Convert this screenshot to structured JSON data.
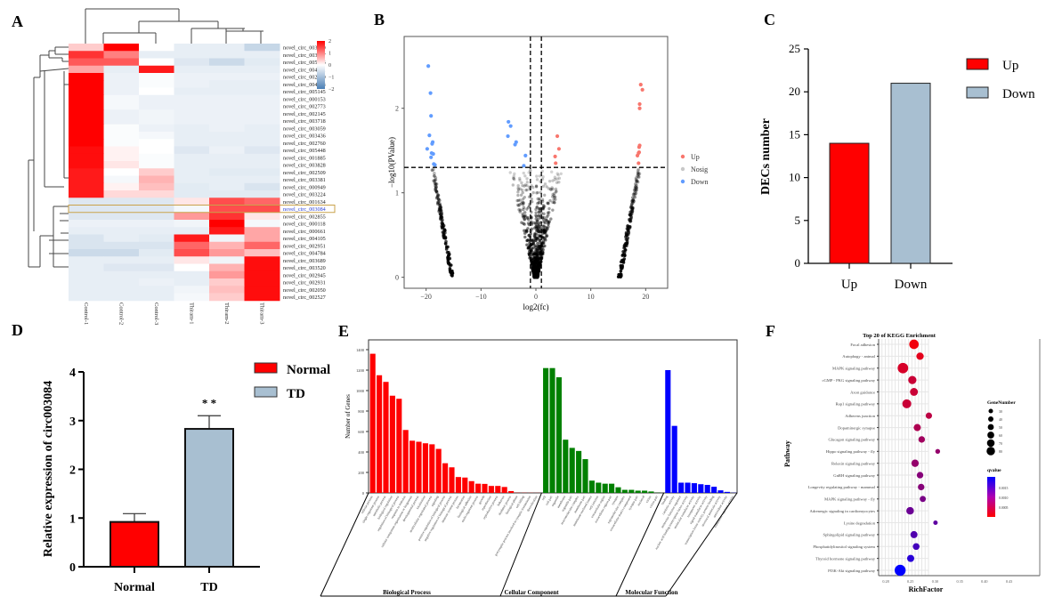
{
  "panels": {
    "A": "A",
    "B": "B",
    "C": "C",
    "D": "D",
    "E": "E",
    "F": "F"
  },
  "chart_data": [
    {
      "id": "A",
      "type": "heatmap",
      "title": "",
      "columns": [
        "Control-1",
        "Control-2",
        "Control-3",
        "Thiram-1",
        "Thiram-2",
        "Thiram-3"
      ],
      "highlighted_row": "novel_circ_003084",
      "colorbar": {
        "min": -2,
        "max": 2,
        "ticks": [
          2,
          1,
          0,
          -1,
          -2
        ],
        "low_color": "#4a7fb5",
        "mid_color": "#ffffff",
        "high_color": "#ff0000"
      },
      "rows": [
        {
          "name": "novel_circ_003620",
          "values": [
            0.4,
            2.0,
            0.0,
            -0.5,
            -0.5,
            -1.0
          ]
        },
        {
          "name": "novel_circ_003667",
          "values": [
            1.6,
            1.0,
            -0.5,
            -0.5,
            -0.5,
            -0.5
          ]
        },
        {
          "name": "novel_circ_005246",
          "values": [
            1.3,
            1.3,
            0.0,
            -0.7,
            -0.9,
            -0.6
          ]
        },
        {
          "name": "novel_circ_004511",
          "values": [
            0.7,
            -0.5,
            1.8,
            -0.5,
            -0.5,
            -0.5
          ]
        },
        {
          "name": "novel_circ_002180",
          "values": [
            2.0,
            -0.4,
            -0.1,
            -0.4,
            -0.4,
            -0.4
          ]
        },
        {
          "name": "novel_circ_004313",
          "values": [
            2.0,
            -0.4,
            -0.1,
            -0.4,
            -0.5,
            -0.5
          ]
        },
        {
          "name": "novel_circ_005145",
          "values": [
            2.0,
            -0.4,
            0.0,
            -0.5,
            -0.5,
            -0.5
          ]
        },
        {
          "name": "novel_circ_000153",
          "values": [
            2.0,
            -0.2,
            -0.4,
            -0.4,
            -0.4,
            -0.4
          ]
        },
        {
          "name": "novel_circ_002773",
          "values": [
            2.0,
            -0.2,
            -0.4,
            -0.4,
            -0.4,
            -0.4
          ]
        },
        {
          "name": "novel_circ_002145",
          "values": [
            2.0,
            -0.4,
            -0.3,
            -0.4,
            -0.4,
            -0.4
          ]
        },
        {
          "name": "novel_circ_003718",
          "values": [
            2.0,
            -0.4,
            -0.3,
            -0.4,
            -0.4,
            -0.4
          ]
        },
        {
          "name": "novel_circ_003059",
          "values": [
            2.0,
            -0.1,
            -0.4,
            -0.5,
            -0.4,
            -0.5
          ]
        },
        {
          "name": "novel_circ_003436",
          "values": [
            2.0,
            -0.1,
            -0.2,
            -0.5,
            -0.5,
            -0.5
          ]
        },
        {
          "name": "novel_circ_002760",
          "values": [
            2.0,
            -0.1,
            0.0,
            -0.5,
            -0.5,
            -0.5
          ]
        },
        {
          "name": "novel_circ_005448",
          "values": [
            1.9,
            0.1,
            0.0,
            -0.7,
            -0.4,
            -0.7
          ]
        },
        {
          "name": "novel_circ_001885",
          "values": [
            1.9,
            0.1,
            -0.1,
            -0.5,
            -0.5,
            -0.5
          ]
        },
        {
          "name": "novel_circ_003828",
          "values": [
            1.9,
            0.2,
            -0.1,
            -0.5,
            -0.5,
            -0.5
          ]
        },
        {
          "name": "novel_circ_002509",
          "values": [
            1.8,
            0.0,
            0.4,
            -0.5,
            -0.6,
            -0.6
          ]
        },
        {
          "name": "novel_circ_003381",
          "values": [
            1.8,
            -0.2,
            0.6,
            -0.5,
            -0.5,
            -0.5
          ]
        },
        {
          "name": "novel_circ_000949",
          "values": [
            1.8,
            0.1,
            0.5,
            -0.6,
            -0.5,
            -0.8
          ]
        },
        {
          "name": "novel_circ_003224",
          "values": [
            1.8,
            0.3,
            0.3,
            -0.6,
            -0.6,
            -0.6
          ]
        },
        {
          "name": "novel_circ_001634",
          "values": [
            -0.7,
            -0.7,
            -0.7,
            0.2,
            1.4,
            1.2
          ]
        },
        {
          "name": "novel_circ_003084",
          "values": [
            -0.7,
            -0.7,
            -0.7,
            -0.2,
            1.4,
            1.4
          ]
        },
        {
          "name": "novel_circ_002855",
          "values": [
            -0.7,
            -0.7,
            -0.7,
            0.8,
            1.6,
            0.2
          ]
        },
        {
          "name": "novel_circ_000118",
          "values": [
            -0.4,
            -0.4,
            -0.4,
            -0.3,
            2.0,
            -0.2
          ]
        },
        {
          "name": "novel_circ_000661",
          "values": [
            -0.5,
            -0.5,
            -0.5,
            -0.5,
            1.8,
            0.7
          ]
        },
        {
          "name": "novel_circ_004105",
          "values": [
            -0.8,
            -0.5,
            -0.6,
            1.8,
            -0.3,
            0.7
          ]
        },
        {
          "name": "novel_circ_002951",
          "values": [
            -0.8,
            -0.8,
            -0.8,
            1.2,
            0.6,
            1.2
          ]
        },
        {
          "name": "novel_circ_004784",
          "values": [
            -0.9,
            -0.9,
            -0.6,
            1.4,
            0.8,
            0.5
          ]
        },
        {
          "name": "novel_circ_003689",
          "values": [
            -0.5,
            -0.5,
            -0.5,
            0.2,
            -0.3,
            1.9
          ]
        },
        {
          "name": "novel_circ_003520",
          "values": [
            -0.5,
            -0.7,
            -0.7,
            0.0,
            0.6,
            1.9
          ]
        },
        {
          "name": "novel_circ_002945",
          "values": [
            -0.5,
            -0.5,
            -0.5,
            -0.5,
            0.8,
            1.9
          ]
        },
        {
          "name": "novel_circ_002931",
          "values": [
            -0.5,
            -0.5,
            -0.4,
            -0.5,
            0.4,
            1.9
          ]
        },
        {
          "name": "novel_circ_002050",
          "values": [
            -0.5,
            -0.5,
            -0.5,
            -0.3,
            0.5,
            1.9
          ]
        },
        {
          "name": "novel_circ_002527",
          "values": [
            -0.5,
            -0.5,
            -0.5,
            -0.2,
            0.4,
            1.9
          ]
        }
      ]
    },
    {
      "id": "B",
      "type": "scatter",
      "title": "",
      "xlabel": "log2(fc)",
      "ylabel": "-log10(PValue)",
      "xlim": [
        -24,
        24
      ],
      "ylim": [
        -0.13,
        2.85
      ],
      "xticks": [
        -20,
        -10,
        0,
        10,
        20
      ],
      "yticks": [
        0,
        1,
        2
      ],
      "thresholds": {
        "x": [
          -1,
          1
        ],
        "y": 1.3
      },
      "legend": {
        "position": "right",
        "entries": [
          {
            "label": "Up",
            "color": "#f8766d"
          },
          {
            "label": "Nosig",
            "color": "#c8c8c8"
          },
          {
            "label": "Down",
            "color": "#619cff"
          }
        ]
      },
      "series": [
        {
          "name": "Up",
          "color": "#f8766d",
          "points": [
            [
              19.1,
              2.28
            ],
            [
              19.4,
              2.22
            ],
            [
              18.9,
              2.05
            ],
            [
              18.9,
              2.0
            ],
            [
              18.9,
              1.56
            ],
            [
              18.8,
              1.54
            ],
            [
              18.8,
              1.48
            ],
            [
              18.7,
              1.47
            ],
            [
              18.5,
              1.44
            ],
            [
              18.7,
              1.35
            ],
            [
              3.9,
              1.67
            ],
            [
              4.2,
              1.52
            ],
            [
              3.5,
              1.43
            ],
            [
              3.6,
              1.35
            ]
          ]
        },
        {
          "name": "Down",
          "color": "#619cff",
          "points": [
            [
              -19.6,
              2.5
            ],
            [
              -19.2,
              2.18
            ],
            [
              -19.1,
              1.91
            ],
            [
              -19.4,
              1.68
            ],
            [
              -18.8,
              1.6
            ],
            [
              -18.9,
              1.58
            ],
            [
              -19.8,
              1.52
            ],
            [
              -19.0,
              1.47
            ],
            [
              -18.7,
              1.46
            ],
            [
              -19.1,
              1.42
            ],
            [
              -18.6,
              1.34
            ],
            [
              -18.4,
              1.33
            ],
            [
              -5.0,
              1.84
            ],
            [
              -4.6,
              1.79
            ],
            [
              -5.1,
              1.67
            ],
            [
              -3.6,
              1.6
            ],
            [
              -3.8,
              1.57
            ],
            [
              -1.9,
              1.44
            ],
            [
              -2.2,
              1.32
            ]
          ]
        }
      ]
    },
    {
      "id": "C",
      "type": "bar",
      "title": "",
      "categories": [
        "Up",
        "Down"
      ],
      "values": [
        14,
        21
      ],
      "colors": [
        "#ff0000",
        "#a8bfd1"
      ],
      "xlabel": "",
      "ylabel": "DECs number",
      "ylim": [
        0,
        25
      ],
      "yticks": [
        0,
        5,
        10,
        15,
        20,
        25
      ],
      "legend": {
        "position": "top-right",
        "entries": [
          "Up",
          "Down"
        ]
      }
    },
    {
      "id": "D",
      "type": "bar",
      "title": "",
      "categories": [
        "Normal",
        "TD"
      ],
      "values": [
        0.92,
        2.83
      ],
      "errors": [
        0.17,
        0.27
      ],
      "colors": [
        "#ff0000",
        "#a8bfd1"
      ],
      "significance": {
        "TD": "* *"
      },
      "xlabel": "",
      "ylabel": "Relative expression of circ003084",
      "ylim": [
        0,
        4
      ],
      "yticks": [
        0,
        1,
        2,
        3,
        4
      ],
      "legend": {
        "position": "top-right",
        "entries": [
          "Normal",
          "TD"
        ]
      }
    },
    {
      "id": "E",
      "type": "bar",
      "title": "",
      "ylabel": "Number of Genes",
      "ylim": [
        0,
        1400
      ],
      "yticks": [
        0,
        200,
        400,
        600,
        800,
        1000,
        1200,
        1400
      ],
      "groups": [
        {
          "name": "Biological Process",
          "color": "#ff0000",
          "categories": [
            "cellular process",
            "single-organism process",
            "metabolic process",
            "biological regulation",
            "regulation of biological process",
            "response to stimulus",
            "cellular component organization or biogenesis",
            "developmental process",
            "localization",
            "multicellular organismal process",
            "signaling",
            "positive regulation of biological process",
            "negative regulation of biological process",
            "immune system process",
            "locomotion",
            "biological adhesion",
            "multi-organism process",
            "growth",
            "reproduction",
            "reproductive process",
            "behavior",
            "rhythmic process",
            "biological phase",
            "cell killing",
            "presynaptic process involved in synaptic transmission",
            "detoxification"
          ],
          "values": [
            1360,
            1150,
            1085,
            950,
            920,
            615,
            510,
            500,
            485,
            475,
            430,
            290,
            250,
            155,
            150,
            115,
            90,
            88,
            68,
            68,
            58,
            18,
            6,
            5,
            4,
            3
          ]
        },
        {
          "name": "Cellular Component",
          "color": "#008000",
          "categories": [
            "cell",
            "cell part",
            "organelle",
            "membrane",
            "organelle part",
            "macromolecular complex",
            "membrane part",
            "membrane-enclosed lumen",
            "cell junction",
            "extracellular region",
            "extracellular region part",
            "synapse",
            "supramolecular complex",
            "extracellular matrix component",
            "synapse part",
            "nucleoid",
            "virion",
            "virion part"
          ],
          "values": [
            1220,
            1220,
            1130,
            520,
            440,
            410,
            330,
            120,
            100,
            90,
            90,
            55,
            30,
            30,
            22,
            22,
            14,
            6
          ]
        },
        {
          "name": "Molecular Function",
          "color": "#0000ff",
          "categories": [
            "binding",
            "catalytic activity",
            "molecular function regulator",
            "nucleic acid binding transcription factor activity",
            "molecular transducer activity",
            "transporter activity",
            "signal transducer activity",
            "transcription factor activity, protein binding",
            "structural molecule activity",
            "antioxidant activity",
            "translation regulator activity"
          ],
          "values": [
            1200,
            655,
            100,
            100,
            95,
            85,
            78,
            60,
            25,
            10,
            5
          ]
        }
      ]
    },
    {
      "id": "F",
      "type": "scatter",
      "title": "Top 20 of KEGG Enrichment",
      "xlabel": "RichFactor",
      "ylabel": "Pathway",
      "xlim": [
        0.285,
        0.43
      ],
      "xticks": [
        0.28,
        0.25,
        0.3,
        0.35,
        0.4,
        0.43
      ],
      "xtick_labels": [
        "0.28",
        "0.25",
        "0.30",
        "0.35",
        "0.40",
        "0.43"
      ],
      "size_legend": {
        "title": "GeneNumber",
        "values": [
          30,
          40,
          50,
          60,
          70,
          80
        ]
      },
      "color_legend": {
        "title": "qvalue",
        "ticks": [
          "0.0015",
          "0.0010",
          "0.0005"
        ],
        "low_color": "#ff0000",
        "high_color": "#0000ff"
      },
      "pathways": [
        {
          "name": "Focal adhesion",
          "richfactor": 0.325,
          "genes": 70,
          "q": 0.0001
        },
        {
          "name": "Autophagy - animal",
          "richfactor": 0.336,
          "genes": 50,
          "q": 0.0002
        },
        {
          "name": "MAPK signaling pathway",
          "richfactor": 0.305,
          "genes": 80,
          "q": 0.0003
        },
        {
          "name": "cGMP - PKG signaling pathway",
          "richfactor": 0.322,
          "genes": 58,
          "q": 0.0004
        },
        {
          "name": "Axon guidance",
          "richfactor": 0.325,
          "genes": 55,
          "q": 0.0004
        },
        {
          "name": "Rap1 signaling pathway",
          "richfactor": 0.312,
          "genes": 65,
          "q": 0.0004
        },
        {
          "name": "Adherens junction",
          "richfactor": 0.352,
          "genes": 40,
          "q": 0.0005
        },
        {
          "name": "Dopaminergic synapse",
          "richfactor": 0.331,
          "genes": 48,
          "q": 0.0006
        },
        {
          "name": "Glucagon signaling pathway",
          "richfactor": 0.339,
          "genes": 42,
          "q": 0.0007
        },
        {
          "name": "Hippo signaling pathway - fly",
          "richfactor": 0.368,
          "genes": 25,
          "q": 0.0008
        },
        {
          "name": "Relaxin signaling pathway",
          "richfactor": 0.327,
          "genes": 50,
          "q": 0.0008
        },
        {
          "name": "GnRH signaling pathway",
          "richfactor": 0.336,
          "genes": 42,
          "q": 0.0009
        },
        {
          "name": "Longevity regulating pathway - mammal",
          "richfactor": 0.338,
          "genes": 42,
          "q": 0.0009
        },
        {
          "name": "MAPK signaling pathway - fly",
          "richfactor": 0.341,
          "genes": 38,
          "q": 0.001
        },
        {
          "name": "Adrenergic signaling in cardiomyocytes",
          "richfactor": 0.318,
          "genes": 52,
          "q": 0.0011
        },
        {
          "name": "Lysine degradation",
          "richfactor": 0.364,
          "genes": 22,
          "q": 0.0012
        },
        {
          "name": "Sphingolipid signaling pathway",
          "richfactor": 0.325,
          "genes": 47,
          "q": 0.0013
        },
        {
          "name": "Phosphatidylinositol signaling system",
          "richfactor": 0.329,
          "genes": 44,
          "q": 0.0014
        },
        {
          "name": "Thyroid hormone signaling pathway",
          "richfactor": 0.319,
          "genes": 48,
          "q": 0.0016
        },
        {
          "name": "PI3K-Akt signaling pathway",
          "richfactor": 0.3,
          "genes": 85,
          "q": 0.0019
        }
      ]
    }
  ]
}
